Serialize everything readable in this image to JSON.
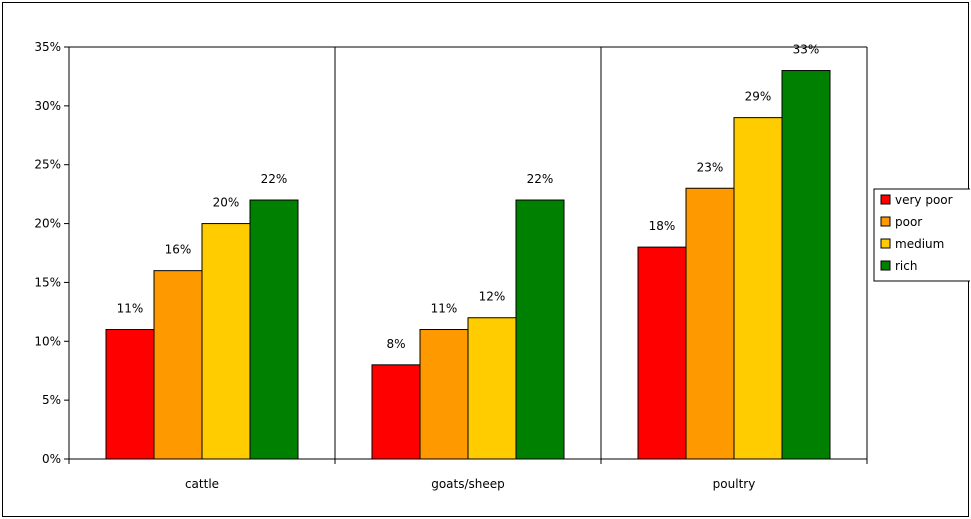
{
  "chart_data": {
    "type": "bar",
    "categories": [
      "cattle",
      "goats/sheep",
      "poultry"
    ],
    "series": [
      {
        "name": "very poor",
        "values": [
          11,
          8,
          18
        ],
        "color": "#ff0000"
      },
      {
        "name": "poor",
        "values": [
          16,
          11,
          23
        ],
        "color": "#ff9900"
      },
      {
        "name": "medium",
        "values": [
          20,
          12,
          29
        ],
        "color": "#ffcc00"
      },
      {
        "name": "rich",
        "values": [
          22,
          22,
          33
        ],
        "color": "#008000"
      }
    ],
    "data_labels": [
      [
        "11%",
        "8%",
        "18%"
      ],
      [
        "16%",
        "11%",
        "23%"
      ],
      [
        "20%",
        "12%",
        "29%"
      ],
      [
        "22%",
        "22%",
        "33%"
      ]
    ],
    "y_ticks": [
      0,
      5,
      10,
      15,
      20,
      25,
      30,
      35
    ],
    "y_tick_labels": [
      "0%",
      "5%",
      "10%",
      "15%",
      "20%",
      "25%",
      "30%",
      "35%"
    ],
    "ylim": [
      0,
      35
    ],
    "title": "",
    "xlabel": "",
    "ylabel": "",
    "grid": "vertical category separators",
    "legend_position": "right"
  }
}
